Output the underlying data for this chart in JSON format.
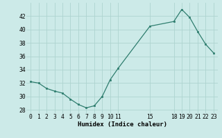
{
  "x": [
    0,
    1,
    2,
    3,
    4,
    5,
    6,
    7,
    8,
    9,
    10,
    11,
    15,
    18,
    19,
    20,
    21,
    22,
    23
  ],
  "y": [
    32.2,
    32.0,
    31.2,
    30.8,
    30.5,
    29.6,
    28.8,
    28.3,
    28.6,
    30.0,
    32.5,
    34.2,
    40.5,
    41.2,
    43.0,
    41.8,
    39.7,
    37.8,
    36.5
  ],
  "line_color": "#2e7d6e",
  "marker_color": "#2e7d6e",
  "bg_color": "#cceae8",
  "grid_color": "#aed4d0",
  "xlabel": "Humidex (Indice chaleur)",
  "xlim": [
    -0.5,
    23.5
  ],
  "ylim": [
    27.5,
    44.0
  ],
  "yticks": [
    28,
    30,
    32,
    34,
    36,
    38,
    40,
    42
  ],
  "xticks": [
    0,
    1,
    2,
    3,
    4,
    5,
    6,
    7,
    8,
    9,
    10,
    11,
    15,
    18,
    19,
    20,
    21,
    22,
    23
  ],
  "xlabel_fontsize": 6.5,
  "tick_fontsize": 5.8
}
